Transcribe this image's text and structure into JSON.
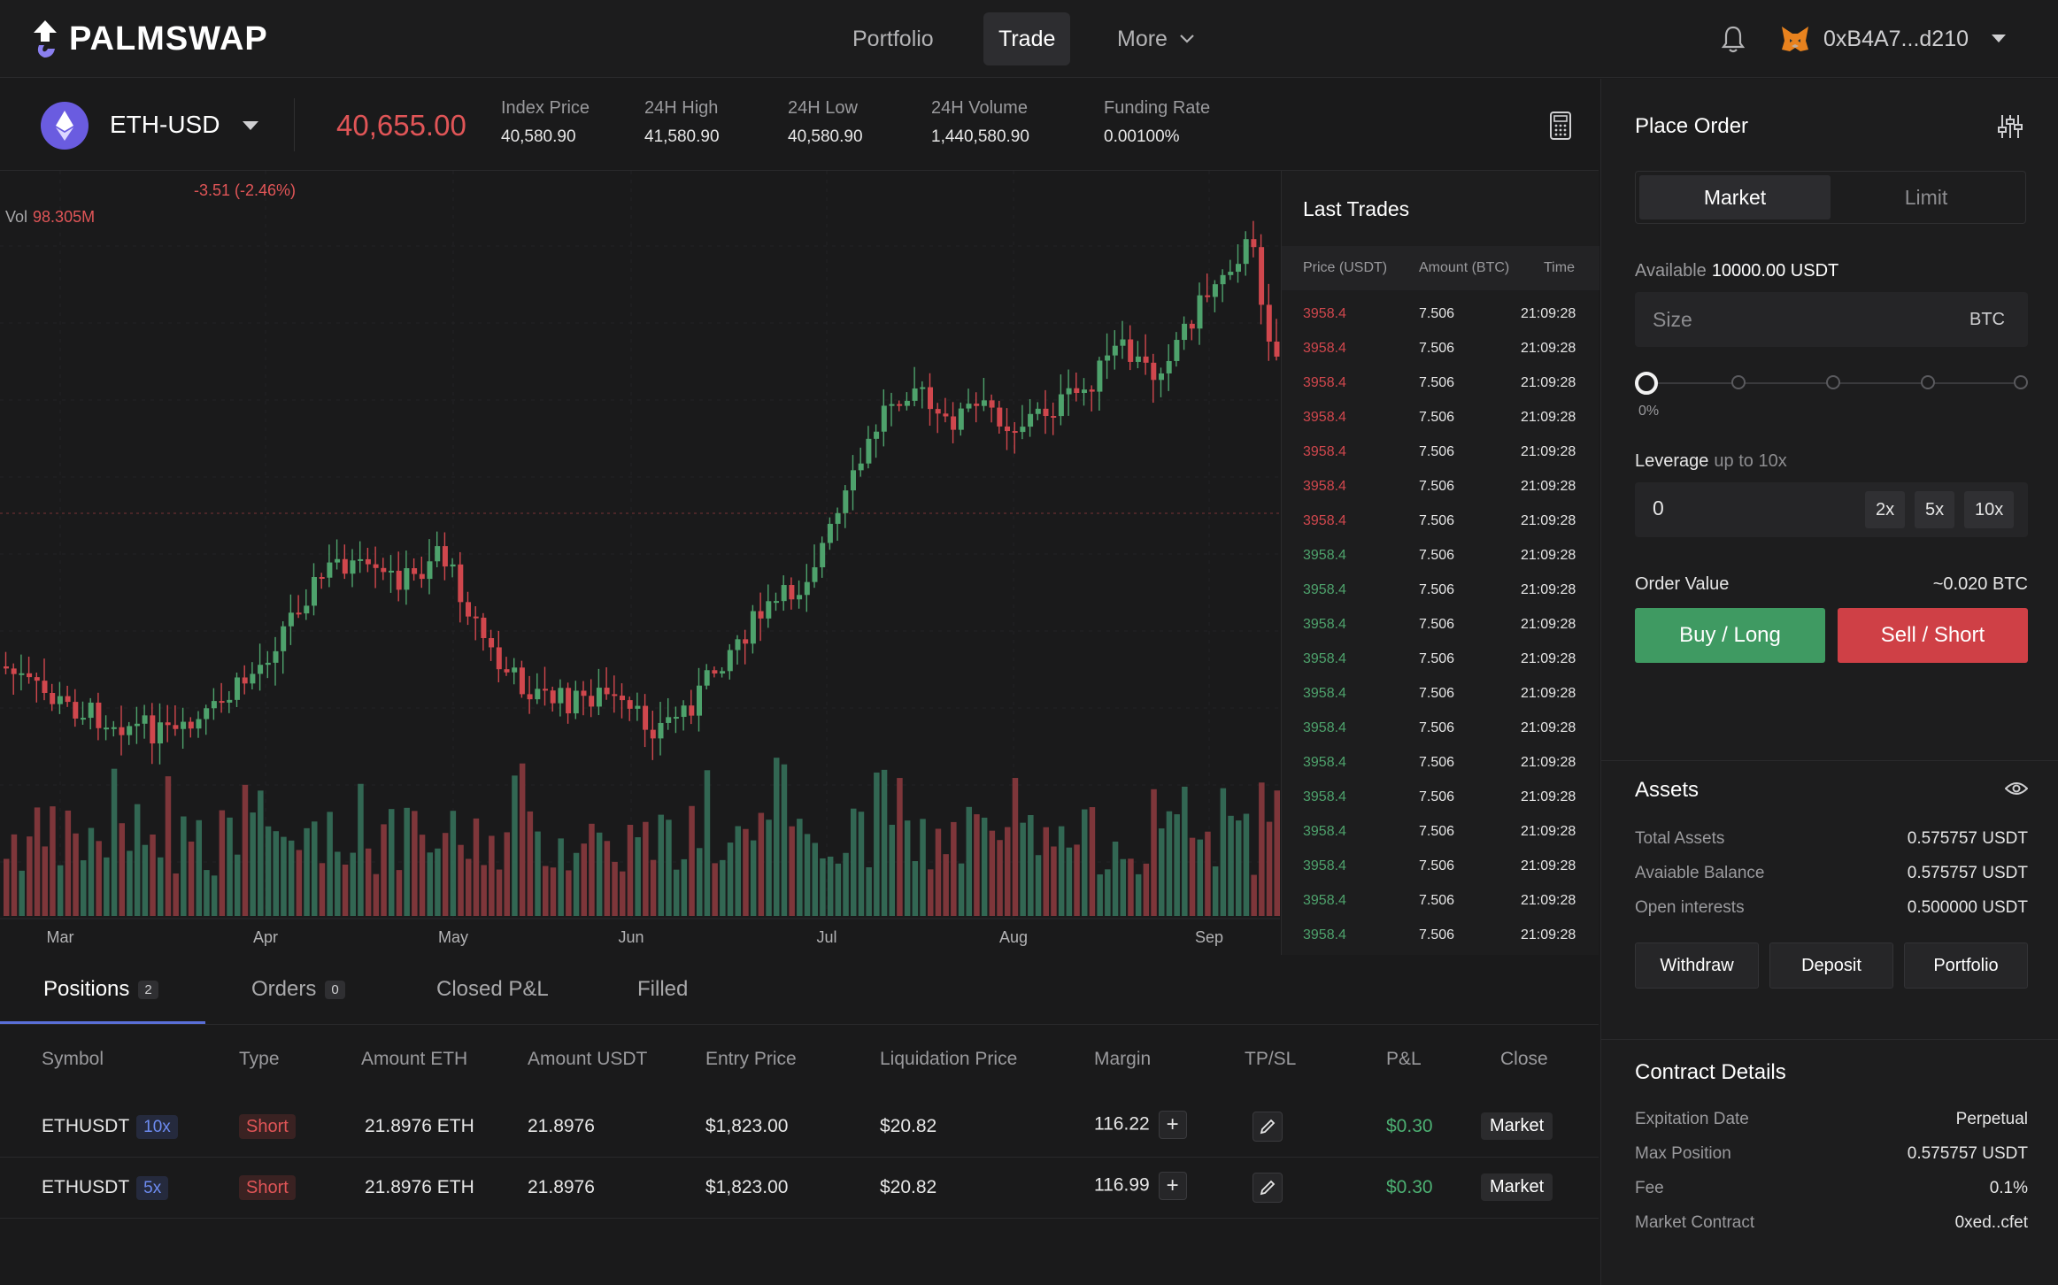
{
  "app": {
    "logo": "PALMSWAP"
  },
  "nav": {
    "portfolio": "Portfolio",
    "trade": "Trade",
    "more": "More",
    "wallet": "0xB4A7...d210"
  },
  "market": {
    "symbol": "ETH-USD",
    "last_price": "40,655.00",
    "stats": [
      {
        "label": "Index Price",
        "value": "40,580.90"
      },
      {
        "label": "24H High",
        "value": "41,580.90"
      },
      {
        "label": "24H Low",
        "value": "40,580.90"
      },
      {
        "label": "24H Volume",
        "value": "1,440,580.90"
      },
      {
        "label": "Funding Rate",
        "value": "0.00100%"
      }
    ]
  },
  "chart": {
    "change": "-3.51 (-2.46%)",
    "vol_label": "Vol",
    "vol_value": "98.305M",
    "months": [
      "Mar",
      "Apr",
      "May",
      "Jun",
      "Jul",
      "Aug",
      "Sep"
    ],
    "up_color": "#4ea26c",
    "down_color": "#d0474d"
  },
  "last_trades": {
    "title": "Last Trades",
    "headers": [
      "Price (USDT)",
      "Amount (BTC)",
      "Time"
    ],
    "rows": [
      {
        "price": "3958.4",
        "amount": "7.506",
        "time": "21:09:28",
        "side": "sell"
      },
      {
        "price": "3958.4",
        "amount": "7.506",
        "time": "21:09:28",
        "side": "sell"
      },
      {
        "price": "3958.4",
        "amount": "7.506",
        "time": "21:09:28",
        "side": "sell"
      },
      {
        "price": "3958.4",
        "amount": "7.506",
        "time": "21:09:28",
        "side": "sell"
      },
      {
        "price": "3958.4",
        "amount": "7.506",
        "time": "21:09:28",
        "side": "sell"
      },
      {
        "price": "3958.4",
        "amount": "7.506",
        "time": "21:09:28",
        "side": "sell"
      },
      {
        "price": "3958.4",
        "amount": "7.506",
        "time": "21:09:28",
        "side": "sell"
      },
      {
        "price": "3958.4",
        "amount": "7.506",
        "time": "21:09:28",
        "side": "buy"
      },
      {
        "price": "3958.4",
        "amount": "7.506",
        "time": "21:09:28",
        "side": "buy"
      },
      {
        "price": "3958.4",
        "amount": "7.506",
        "time": "21:09:28",
        "side": "buy"
      },
      {
        "price": "3958.4",
        "amount": "7.506",
        "time": "21:09:28",
        "side": "buy"
      },
      {
        "price": "3958.4",
        "amount": "7.506",
        "time": "21:09:28",
        "side": "buy"
      },
      {
        "price": "3958.4",
        "amount": "7.506",
        "time": "21:09:28",
        "side": "buy"
      },
      {
        "price": "3958.4",
        "amount": "7.506",
        "time": "21:09:28",
        "side": "buy"
      },
      {
        "price": "3958.4",
        "amount": "7.506",
        "time": "21:09:28",
        "side": "buy"
      },
      {
        "price": "3958.4",
        "amount": "7.506",
        "time": "21:09:28",
        "side": "buy"
      },
      {
        "price": "3958.4",
        "amount": "7.506",
        "time": "21:09:28",
        "side": "buy"
      },
      {
        "price": "3958.4",
        "amount": "7.506",
        "time": "21:09:28",
        "side": "buy"
      },
      {
        "price": "3958.4",
        "amount": "7.506",
        "time": "21:09:28",
        "side": "buy"
      }
    ]
  },
  "bottom_tabs": [
    {
      "label": "Positions",
      "count": "2"
    },
    {
      "label": "Orders",
      "count": "0"
    },
    {
      "label": "Closed P&L"
    },
    {
      "label": "Filled"
    }
  ],
  "positions": {
    "headers": [
      "Symbol",
      "Type",
      "Amount ETH",
      "Amount USDT",
      "Entry Price",
      "Liquidation Price",
      "Margin",
      "TP/SL",
      "P&L",
      "Close"
    ],
    "rows": [
      {
        "symbol": "ETHUSDT",
        "leverage": "10x",
        "type": "Short",
        "amount_eth": "21.8976 ETH",
        "amount_usdt": "21.8976",
        "entry": "$1,823.00",
        "liq": "$20.82",
        "margin": "116.22",
        "pnl": "$0.30",
        "close": "Market"
      },
      {
        "symbol": "ETHUSDT",
        "leverage": "5x",
        "type": "Short",
        "amount_eth": "21.8976 ETH",
        "amount_usdt": "21.8976",
        "entry": "$1,823.00",
        "liq": "$20.82",
        "margin": "116.99",
        "pnl": "$0.30",
        "close": "Market"
      }
    ]
  },
  "order": {
    "title": "Place Order",
    "tab_market": "Market",
    "tab_limit": "Limit",
    "available_label": "Available",
    "available_value": "10000.00 USDT",
    "size_placeholder": "Size",
    "size_unit": "BTC",
    "slider_value": "0%",
    "leverage_label": "Leverage",
    "leverage_hint": "up to 10x",
    "leverage_value": "0",
    "leverage_presets": [
      "2x",
      "5x",
      "10x"
    ],
    "order_value_label": "Order Value",
    "order_value": "~0.020 BTC",
    "buy_label": "Buy / Long",
    "sell_label": "Sell / Short"
  },
  "assets": {
    "title": "Assets",
    "rows": [
      {
        "k": "Total Assets",
        "v": "0.575757 USDT"
      },
      {
        "k": "Avaiable Balance",
        "v": "0.575757 USDT"
      },
      {
        "k": "Open interests",
        "v": "0.500000 USDT"
      }
    ],
    "withdraw": "Withdraw",
    "deposit": "Deposit",
    "portfolio": "Portfolio"
  },
  "contract": {
    "title": "Contract Details",
    "rows": [
      {
        "k": "Expitation Date",
        "v": "Perpetual"
      },
      {
        "k": "Max Position",
        "v": "0.575757 USDT"
      },
      {
        "k": "Fee",
        "v": "0.1%"
      },
      {
        "k": "Market Contract",
        "v": "0xed..cfet"
      }
    ]
  }
}
